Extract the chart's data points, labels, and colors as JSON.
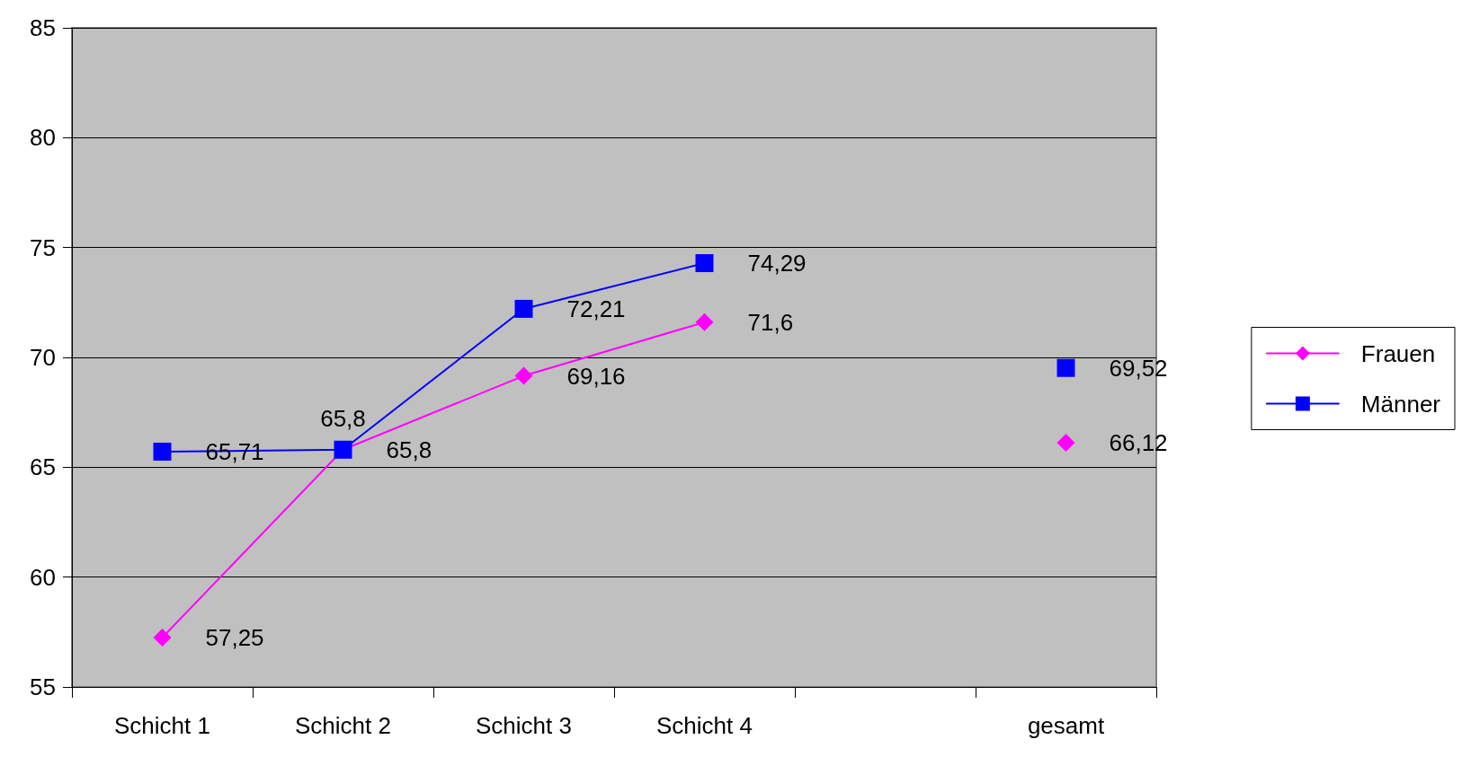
{
  "chart_data": {
    "type": "line",
    "categories": [
      "Schicht 1",
      "Schicht 2",
      "Schicht 3",
      "Schicht 4",
      null,
      "gesamt"
    ],
    "series": [
      {
        "name": "Frauen",
        "color": "#ff00ff",
        "marker": "diamond",
        "values": [
          57.25,
          65.8,
          69.16,
          71.6,
          null,
          66.12
        ],
        "value_labels": [
          "57,25",
          "65,8",
          "69,16",
          "71,6",
          null,
          "66,12"
        ]
      },
      {
        "name": "Männer",
        "color": "#0000ff",
        "marker": "square",
        "values": [
          65.71,
          65.8,
          72.21,
          74.29,
          null,
          69.52
        ],
        "value_labels": [
          "65,71",
          "65,8",
          "72,21",
          "74,29",
          null,
          "69,52"
        ]
      }
    ],
    "ylim": [
      55,
      85
    ],
    "yticks": [
      55,
      60,
      65,
      70,
      75,
      80,
      85
    ],
    "grid": "y",
    "legend": "right"
  }
}
